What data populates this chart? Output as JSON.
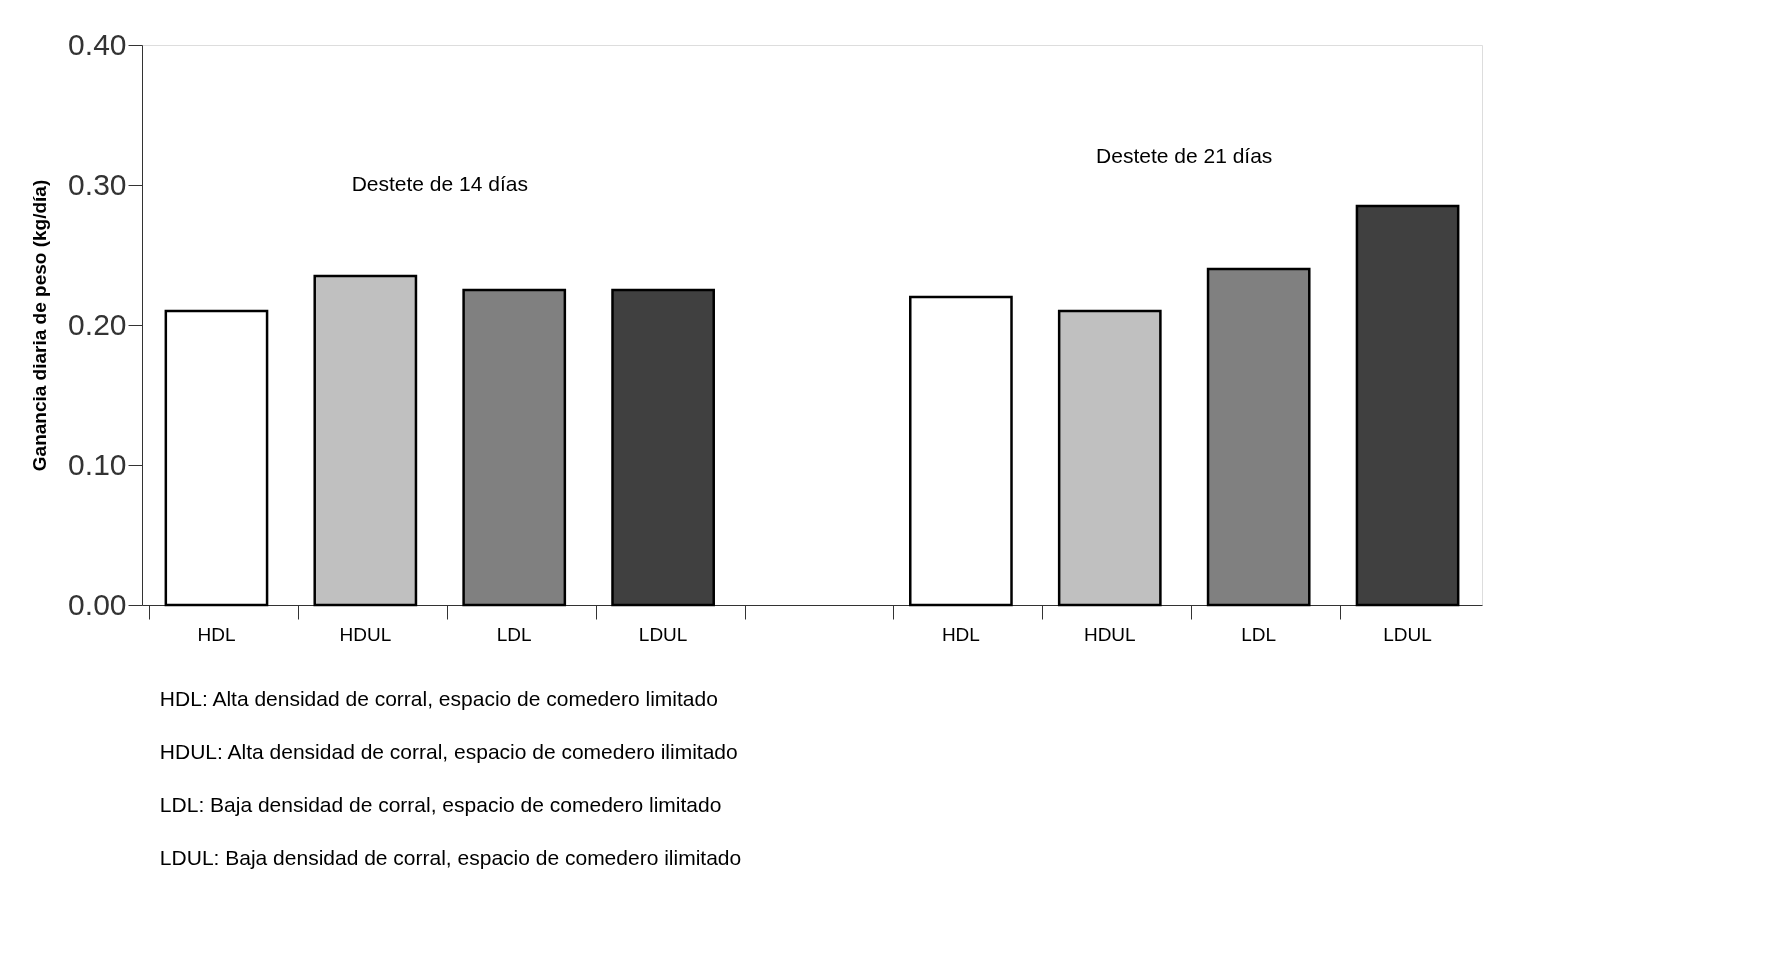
{
  "chart_data": {
    "type": "bar",
    "ylabel": "Ganancia diaria de peso (kg/día)",
    "categories": [
      "HDL",
      "HDUL",
      "LDL",
      "LDUL",
      null,
      "HDL",
      "HDUL",
      "LDL",
      "LDUL"
    ],
    "values": [
      0.21,
      0.235,
      0.225,
      0.225,
      null,
      0.22,
      0.21,
      0.24,
      0.285
    ],
    "colors": [
      "#ffffff",
      "#c0c0c0",
      "#808080",
      "#404040",
      null,
      "#ffffff",
      "#c0c0c0",
      "#808080",
      "#404040"
    ],
    "ylim": [
      0,
      0.4
    ],
    "yticks": [
      {
        "value": 0,
        "label": "0.00"
      },
      {
        "value": 0.1,
        "label": "0.10"
      },
      {
        "value": 0.2,
        "label": "0.20"
      },
      {
        "value": 0.3,
        "label": "0.30"
      },
      {
        "value": 0.4,
        "label": "0.40"
      }
    ],
    "grid": false,
    "annotations": [
      "Destete de 14 días",
      "Destete de 21 días",
      "HDL:    Alta densidad de corral, espacio de comedero limitado",
      "HDUL: Alta densidad de corral, espacio de comedero ilimitado",
      "LDL:     Baja densidad de corral, espacio de comedero limitado",
      "LDUL:  Baja densidad de corral, espacio de comedero ilimitado"
    ]
  }
}
